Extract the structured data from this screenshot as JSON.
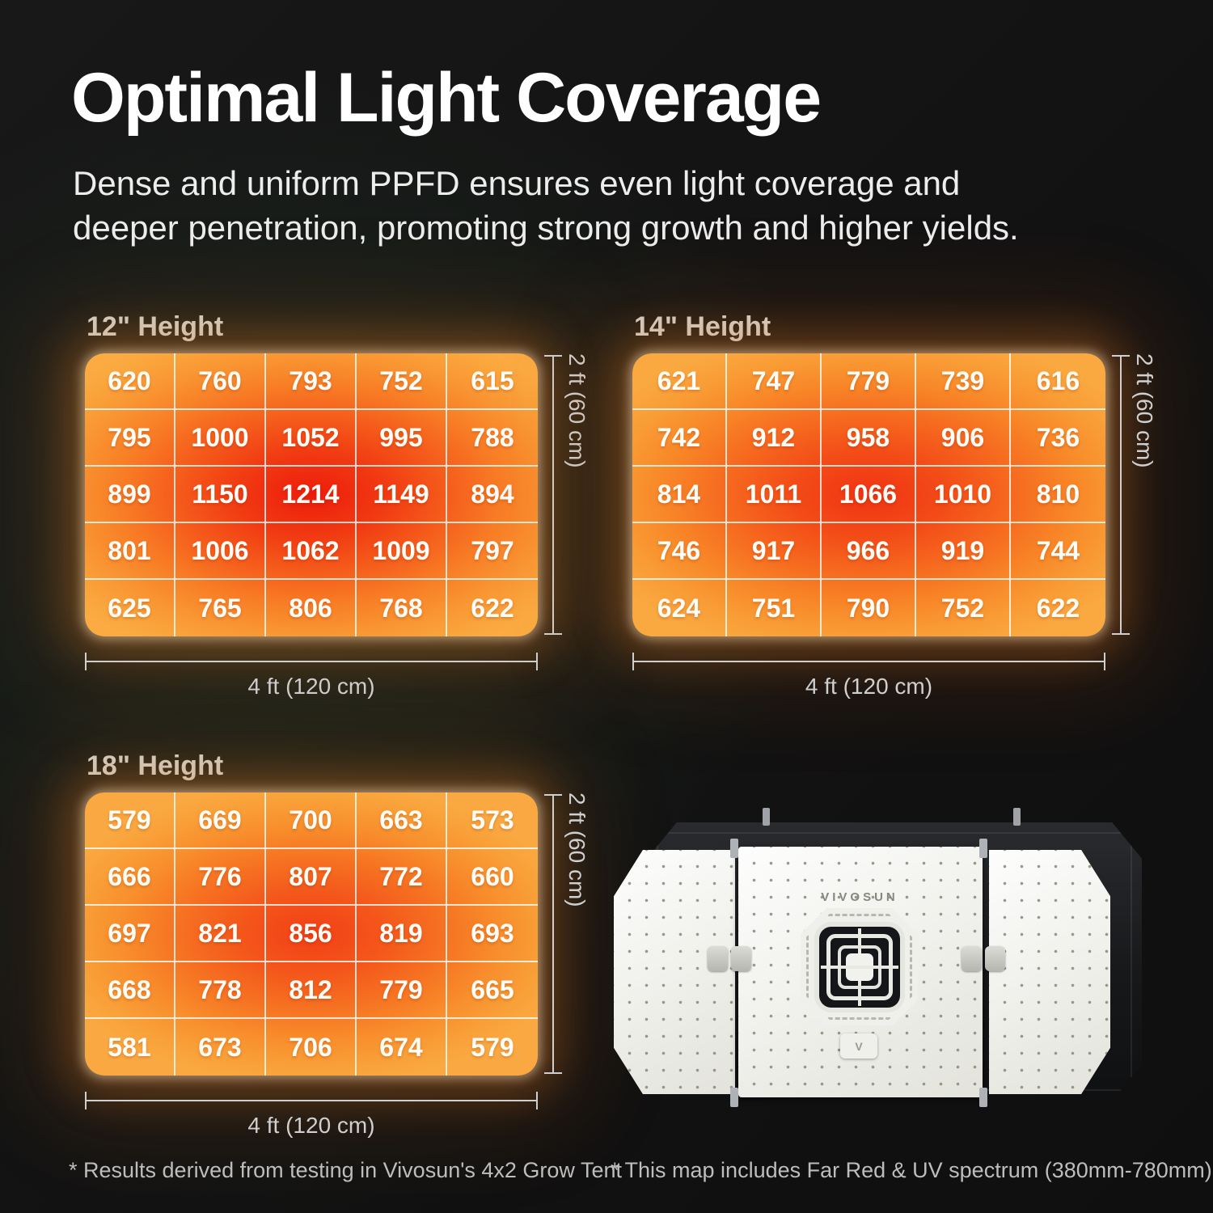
{
  "page": {
    "title": "Optimal Light Coverage",
    "subtitle": "Dense and uniform PPFD ensures even light coverage and\ndeeper penetration, promoting strong growth and higher yields.",
    "footnote_left": "* Results derived from testing in Vivosun's 4x2 Grow Tent",
    "footnote_right": "* This map includes Far Red & UV spectrum (380mm-780mm)"
  },
  "colors": {
    "background": "#131313",
    "heat_low": "#faa942",
    "heat_mid": "#f87e26",
    "heat_high": "#ed1c0c",
    "grid_line": "#ffffff",
    "text_primary": "#ffffff",
    "text_secondary": "#cfcfcf"
  },
  "chart_data": [
    {
      "type": "heatmap",
      "title": "12\" Height",
      "x_label": "4 ft (120 cm)",
      "y_label": "2 ft (60 cm)",
      "rows": 5,
      "cols": 5,
      "min": 615,
      "max": 1214,
      "values": [
        [
          620,
          760,
          793,
          752,
          615
        ],
        [
          795,
          1000,
          1052,
          995,
          788
        ],
        [
          899,
          1150,
          1214,
          1149,
          894
        ],
        [
          801,
          1006,
          1062,
          1009,
          797
        ],
        [
          625,
          765,
          806,
          768,
          622
        ]
      ]
    },
    {
      "type": "heatmap",
      "title": "14\" Height",
      "x_label": "4 ft (120 cm)",
      "y_label": "2 ft (60 cm)",
      "rows": 5,
      "cols": 5,
      "min": 616,
      "max": 1066,
      "values": [
        [
          621,
          747,
          779,
          739,
          616
        ],
        [
          742,
          912,
          958,
          906,
          736
        ],
        [
          814,
          1011,
          1066,
          1010,
          810
        ],
        [
          746,
          917,
          966,
          919,
          744
        ],
        [
          624,
          751,
          790,
          752,
          622
        ]
      ]
    },
    {
      "type": "heatmap",
      "title": "18\" Height",
      "x_label": "4 ft (120 cm)",
      "y_label": "2 ft (60 cm)",
      "rows": 5,
      "cols": 5,
      "min": 573,
      "max": 856,
      "values": [
        [
          579,
          669,
          700,
          663,
          573
        ],
        [
          666,
          776,
          807,
          772,
          660
        ],
        [
          697,
          821,
          856,
          819,
          693
        ],
        [
          668,
          778,
          812,
          779,
          665
        ],
        [
          581,
          673,
          706,
          674,
          579
        ]
      ]
    }
  ],
  "product": {
    "brand": "VIVOSUN",
    "badge_glyph": "V"
  }
}
